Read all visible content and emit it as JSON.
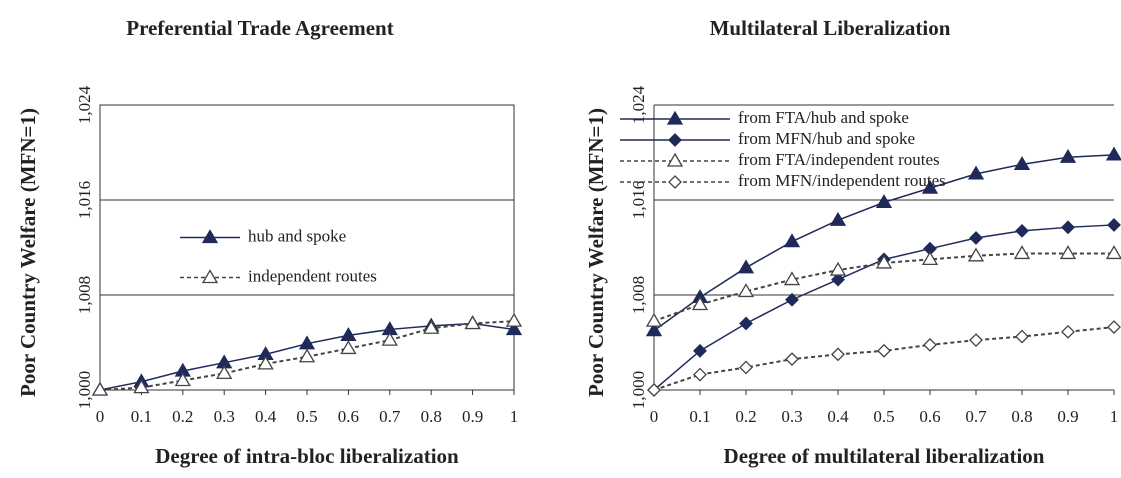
{
  "chart_data": [
    {
      "type": "line",
      "title": "Preferential Trade Agreement",
      "x_label": "Degree of intra-bloc liberalization",
      "y_label": "Poor Country Welfare (MFN=1)",
      "x": [
        0,
        0.1,
        0.2,
        0.3,
        0.4,
        0.5,
        0.6,
        0.7,
        0.8,
        0.9,
        1
      ],
      "xlim": [
        0,
        1
      ],
      "xticks": [
        0,
        0.1,
        0.2,
        0.3,
        0.4,
        0.5,
        0.6,
        0.7,
        0.8,
        0.9,
        1
      ],
      "ylim": [
        1.0,
        1.024
      ],
      "yticks": [
        {
          "value": 1.0,
          "label": "1,000"
        },
        {
          "value": 1.008,
          "label": "1,008"
        },
        {
          "value": 1.016,
          "label": "1,016"
        },
        {
          "value": 1.024,
          "label": "1,024"
        }
      ],
      "grid": true,
      "frame": true,
      "legend": "center",
      "series": [
        {
          "name": "hub and spoke",
          "color": "#1f2a5a",
          "marker": "triangle",
          "filled": true,
          "dash": false,
          "values": [
            1.0,
            1.0007,
            1.0016,
            1.0023,
            1.003,
            1.0039,
            1.0046,
            1.0051,
            1.0054,
            1.0056,
            1.0051
          ]
        },
        {
          "name": "independent routes",
          "color": "#444444",
          "marker": "triangle",
          "filled": false,
          "dash": true,
          "values": [
            1.0,
            1.0002,
            1.0008,
            1.0014,
            1.0022,
            1.0028,
            1.0035,
            1.0042,
            1.0052,
            1.0056,
            1.0058
          ]
        }
      ]
    },
    {
      "type": "line",
      "title": "Multilateral Liberalization",
      "x_label": "Degree of multilateral liberalization",
      "y_label": "Poor Country Welfare (MFN=1)",
      "x": [
        0,
        0.1,
        0.2,
        0.3,
        0.4,
        0.5,
        0.6,
        0.7,
        0.8,
        0.9,
        1
      ],
      "xlim": [
        0,
        1
      ],
      "xticks": [
        0,
        0.1,
        0.2,
        0.3,
        0.4,
        0.5,
        0.6,
        0.7,
        0.8,
        0.9,
        1
      ],
      "ylim": [
        1.0,
        1.024
      ],
      "yticks": [
        {
          "value": 1.0,
          "label": "1,000"
        },
        {
          "value": 1.008,
          "label": "1,008"
        },
        {
          "value": 1.016,
          "label": "1,016"
        },
        {
          "value": 1.024,
          "label": "1,024"
        }
      ],
      "grid": true,
      "frame": false,
      "legend": "upper left",
      "series": [
        {
          "name": "from FTA/hub and spoke",
          "color": "#1f2a5a",
          "marker": "triangle",
          "filled": true,
          "dash": false,
          "values": [
            1.005,
            1.0078,
            1.0103,
            1.0125,
            1.0143,
            1.0158,
            1.017,
            1.0182,
            1.019,
            1.0196,
            1.0198
          ]
        },
        {
          "name": "from MFN/hub and spoke",
          "color": "#1f2a5a",
          "marker": "diamond",
          "filled": true,
          "dash": false,
          "values": [
            1.0,
            1.0033,
            1.0056,
            1.0076,
            1.0093,
            1.011,
            1.0119,
            1.0128,
            1.0134,
            1.0137,
            1.0139
          ]
        },
        {
          "name": "from FTA/independent routes",
          "color": "#444444",
          "marker": "triangle",
          "filled": false,
          "dash": true,
          "values": [
            1.0058,
            1.0072,
            1.0083,
            1.0093,
            1.0101,
            1.0107,
            1.011,
            1.0113,
            1.0115,
            1.0115,
            1.0115
          ]
        },
        {
          "name": "from MFN/independent routes",
          "color": "#444444",
          "marker": "diamond",
          "filled": false,
          "dash": true,
          "values": [
            1.0,
            1.0013,
            1.0019,
            1.0026,
            1.003,
            1.0033,
            1.0038,
            1.0042,
            1.0045,
            1.0049,
            1.0053
          ]
        }
      ]
    }
  ]
}
